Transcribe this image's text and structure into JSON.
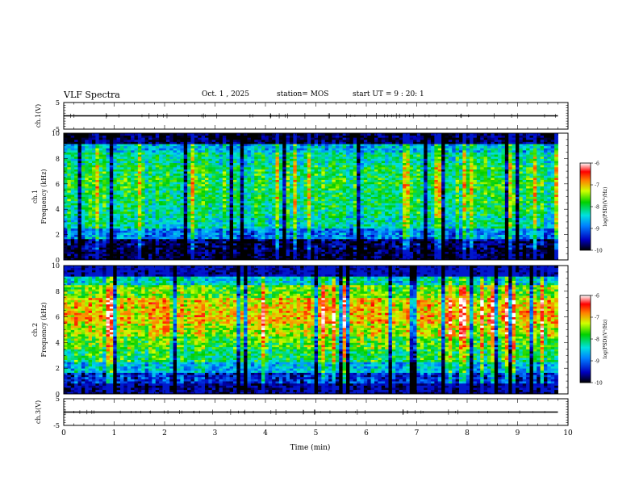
{
  "header": {
    "title": "VLF Spectra",
    "date": "Oct. 1 , 2025",
    "station": "station= MOS",
    "start": "start  UT  =   9 : 20: 1"
  },
  "chart_data": [
    {
      "type": "line",
      "panel": "ch1-waveform",
      "ylabel": "ch.1(V)",
      "ylim": [
        -5,
        5
      ],
      "yticks": [
        "5",
        "-5"
      ],
      "xlim": [
        0,
        10
      ],
      "series": [
        {
          "values": [
            {
              "x": 0,
              "y": 0
            },
            {
              "x": 9.8,
              "y": 0
            }
          ]
        }
      ]
    },
    {
      "type": "heatmap",
      "panel": "ch1-spectrogram",
      "ylabel": "ch.1\nFrequency (kHz)",
      "ylim": [
        0,
        10
      ],
      "yticks": [
        "0",
        "2",
        "4",
        "6",
        "8",
        "10"
      ],
      "xlim": [
        0,
        10
      ],
      "data_x_end": 9.8,
      "colorbar": {
        "label": "log(PSD)(V²/Hz)",
        "range": [
          -10,
          -6
        ],
        "ticks": [
          "-6",
          "-7",
          "-8",
          "-9",
          "-10"
        ]
      },
      "x_bins": 140,
      "freq_profile_bands": [
        0,
        0.8,
        1.6,
        2.5,
        3.5,
        4.5,
        5.5,
        6.5,
        7.5,
        8.5,
        9.2,
        10
      ],
      "mean_log_psd_by_band": [
        -9.9,
        -9.8,
        -8.9,
        -8.3,
        -8.1,
        -8.0,
        -7.9,
        -8.0,
        -8.2,
        -8.6,
        -9.9
      ]
    },
    {
      "type": "heatmap",
      "panel": "ch2-spectrogram",
      "ylabel": "ch.2\nFrequency (kHz)",
      "ylim": [
        0,
        10
      ],
      "yticks": [
        "0",
        "2",
        "4",
        "6",
        "8",
        "10"
      ],
      "xlim": [
        0,
        10
      ],
      "data_x_end": 9.8,
      "colorbar": {
        "label": "log(PSD)(V²/Hz)",
        "range": [
          -10,
          -6
        ],
        "ticks": [
          "-6",
          "-7",
          "-8",
          "-9",
          "-10"
        ]
      },
      "x_bins": 140,
      "freq_profile_bands": [
        0,
        0.8,
        1.6,
        2.5,
        3.5,
        4.5,
        5.5,
        6.5,
        7.5,
        8.5,
        9.2,
        10
      ],
      "mean_log_psd_by_band": [
        -9.6,
        -9.3,
        -8.6,
        -8.0,
        -7.7,
        -7.3,
        -7.0,
        -7.1,
        -7.6,
        -8.4,
        -9.4
      ]
    },
    {
      "type": "line",
      "panel": "ch3-waveform",
      "ylabel": "ch.3(V)",
      "ylim": [
        -5,
        5
      ],
      "yticks": [
        "5",
        "-5"
      ],
      "xlim": [
        0,
        10
      ],
      "series": [
        {
          "values": [
            {
              "x": 0,
              "y": 0
            },
            {
              "x": 9.8,
              "y": 0
            }
          ]
        }
      ]
    }
  ],
  "xaxis": {
    "label": "Time  (min)",
    "ticks": [
      "0",
      "1",
      "2",
      "3",
      "4",
      "5",
      "6",
      "7",
      "8",
      "9",
      "10"
    ]
  }
}
